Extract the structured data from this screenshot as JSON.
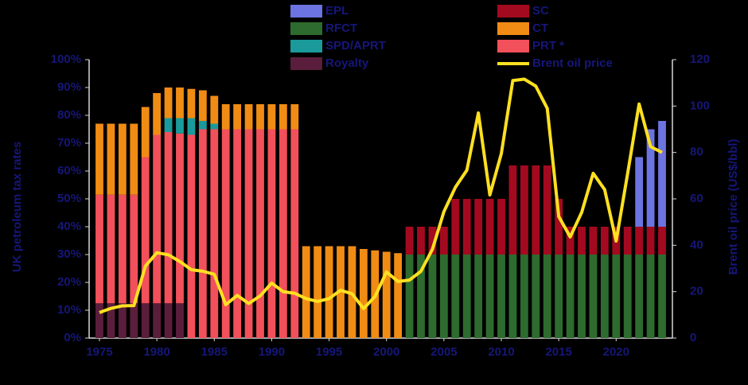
{
  "chart_data": {
    "type": "bar",
    "stacked": true,
    "y_label": "UK petroleum tax rates",
    "y2_label": "Brent oil price (US$/bbl)",
    "x": [
      1975,
      1976,
      1977,
      1978,
      1979,
      1980,
      1981,
      1982,
      1983,
      1984,
      1985,
      1986,
      1987,
      1988,
      1989,
      1990,
      1991,
      1992,
      1993,
      1994,
      1995,
      1996,
      1997,
      1998,
      1999,
      2000,
      2001,
      2002,
      2003,
      2004,
      2005,
      2006,
      2007,
      2008,
      2009,
      2010,
      2011,
      2012,
      2013,
      2014,
      2015,
      2016,
      2017,
      2018,
      2019,
      2020,
      2021,
      2022,
      2023,
      2024
    ],
    "xlim": [
      1974.1,
      2024.9
    ],
    "xticks": [
      1975,
      1980,
      1985,
      1990,
      1995,
      2000,
      2005,
      2010,
      2015,
      2020
    ],
    "ylim": [
      0,
      100
    ],
    "yticks": [
      {
        "value": 0,
        "label": "0%"
      },
      {
        "value": 10,
        "label": "10%"
      },
      {
        "value": 20,
        "label": "20%"
      },
      {
        "value": 30,
        "label": "30%"
      },
      {
        "value": 40,
        "label": "40%"
      },
      {
        "value": 50,
        "label": "50%"
      },
      {
        "value": 60,
        "label": "60%"
      },
      {
        "value": 70,
        "label": "70%"
      },
      {
        "value": 80,
        "label": "80%"
      },
      {
        "value": 90,
        "label": "90%"
      },
      {
        "value": 100,
        "label": "100%"
      }
    ],
    "y2lim": [
      0,
      120
    ],
    "y2ticks": [
      0,
      20,
      40,
      60,
      80,
      100,
      120
    ],
    "series": [
      {
        "name": "Royalty",
        "color": "#5a1e3c",
        "values": [
          12.5,
          12.5,
          12.5,
          12.5,
          12.5,
          12.5,
          12.5,
          12.5,
          null,
          null,
          null,
          null,
          null,
          null,
          null,
          null,
          null,
          null,
          null,
          null,
          null,
          null,
          null,
          null,
          null,
          null,
          null,
          null,
          null,
          null,
          null,
          null,
          null,
          null,
          null,
          null,
          null,
          null,
          null,
          null,
          null,
          null,
          null,
          null,
          null,
          null,
          null,
          null,
          null,
          null
        ]
      },
      {
        "name": "PRT *",
        "color": "#f2505a",
        "values": [
          39,
          39,
          39,
          39,
          52.5,
          60.5,
          61.5,
          61,
          73,
          75,
          75,
          75,
          75,
          75,
          75,
          75,
          75,
          75,
          null,
          null,
          null,
          null,
          null,
          null,
          null,
          null,
          null,
          null,
          null,
          null,
          null,
          null,
          null,
          null,
          null,
          null,
          null,
          null,
          null,
          null,
          null,
          null,
          null,
          null,
          null,
          null,
          null,
          null,
          null,
          null
        ]
      },
      {
        "name": "SPD/APRT",
        "color": "#1a9a9a",
        "values": [
          null,
          null,
          null,
          null,
          null,
          null,
          5,
          5.5,
          6,
          3,
          2,
          null,
          null,
          null,
          null,
          null,
          null,
          null,
          null,
          null,
          null,
          null,
          null,
          null,
          null,
          null,
          null,
          null,
          null,
          null,
          null,
          null,
          null,
          null,
          null,
          null,
          null,
          null,
          null,
          null,
          null,
          null,
          null,
          null,
          null,
          null,
          null,
          null,
          null,
          null
        ]
      },
      {
        "name": "CT",
        "color": "#f08c14",
        "values": [
          25.5,
          25.5,
          25.5,
          25.5,
          18,
          15,
          11,
          11,
          10.5,
          11,
          10,
          9,
          9,
          9,
          9,
          9,
          9,
          9,
          33,
          33,
          33,
          33,
          33,
          32,
          31.5,
          31,
          30.5,
          null,
          null,
          null,
          null,
          null,
          null,
          null,
          null,
          null,
          null,
          null,
          null,
          null,
          null,
          null,
          null,
          null,
          null,
          null,
          null,
          null,
          null,
          null
        ]
      },
      {
        "name": "RFCT",
        "color": "#2e6b2e",
        "values": [
          null,
          null,
          null,
          null,
          null,
          null,
          null,
          null,
          null,
          null,
          null,
          null,
          null,
          null,
          null,
          null,
          null,
          null,
          null,
          null,
          null,
          null,
          null,
          null,
          null,
          null,
          null,
          30,
          30,
          30,
          30,
          30,
          30,
          30,
          30,
          30,
          30,
          30,
          30,
          30,
          30,
          30,
          30,
          30,
          30,
          30,
          30,
          30,
          30,
          30
        ]
      },
      {
        "name": "SC",
        "color": "#a30a1f",
        "values": [
          null,
          null,
          null,
          null,
          null,
          null,
          null,
          null,
          null,
          null,
          null,
          null,
          null,
          null,
          null,
          null,
          null,
          null,
          null,
          null,
          null,
          null,
          null,
          null,
          null,
          null,
          null,
          10,
          10,
          10,
          10,
          20,
          20,
          20,
          20,
          20,
          32,
          32,
          32,
          32,
          20,
          10,
          10,
          10,
          10,
          10,
          10,
          10,
          10,
          10
        ]
      },
      {
        "name": "EPL",
        "color": "#6b74e0",
        "values": [
          null,
          null,
          null,
          null,
          null,
          null,
          null,
          null,
          null,
          null,
          null,
          null,
          null,
          null,
          null,
          null,
          null,
          null,
          null,
          null,
          null,
          null,
          null,
          null,
          null,
          null,
          null,
          null,
          null,
          null,
          null,
          null,
          null,
          null,
          null,
          null,
          null,
          null,
          null,
          null,
          null,
          null,
          null,
          null,
          null,
          null,
          null,
          25,
          35,
          38
        ]
      },
      {
        "name": "Brent oil price",
        "color": "#ffe020",
        "type": "line",
        "axis": "y2",
        "values": [
          11,
          12.8,
          13.9,
          14,
          31,
          36.8,
          35.9,
          33,
          29.5,
          28.8,
          27.5,
          14.4,
          18.4,
          14.9,
          18.2,
          23.7,
          20,
          19.3,
          17,
          15.8,
          17,
          20.6,
          19.1,
          12.7,
          17.9,
          28.5,
          24.4,
          25,
          28.8,
          38.3,
          54.5,
          65,
          72.4,
          97,
          61.7,
          79.5,
          111,
          111.6,
          108.6,
          99,
          52.4,
          43.6,
          54.2,
          71,
          64,
          41.8,
          70.9,
          100.9,
          82.5,
          80
        ]
      }
    ]
  }
}
